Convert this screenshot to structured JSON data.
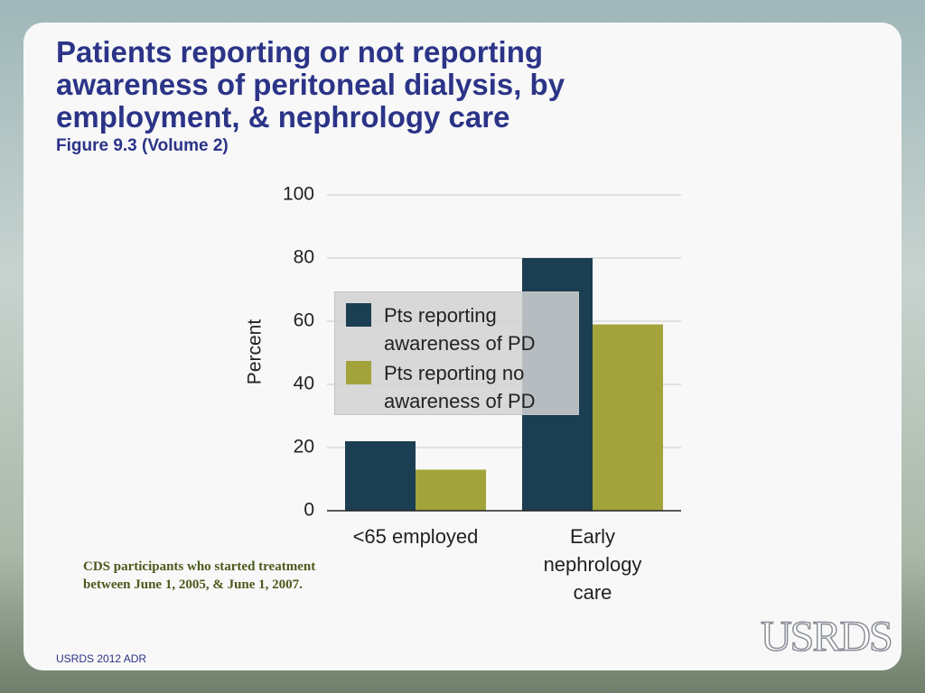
{
  "chart_data": {
    "type": "bar",
    "title": "Patients reporting or not reporting awareness of peritoneal dialysis, by employment, & nephrology  care",
    "subtitle": "Figure 9.3 (Volume 2)",
    "ylabel": "Percent",
    "categories": [
      "<65 employed",
      "Early nephrology care"
    ],
    "series": [
      {
        "name": "Pts reporting awareness of PD",
        "color": "#1b3e52",
        "values": [
          22,
          80
        ]
      },
      {
        "name": "Pts reporting no awareness of PD",
        "color": "#a2a33a",
        "values": [
          13,
          59
        ]
      }
    ],
    "ylim": [
      0,
      100
    ],
    "yticks": [
      0,
      20,
      40,
      60,
      80,
      100
    ],
    "grid": true,
    "note": "CDS participants who started treatment between June 1, 2005, & June 1, 2007.",
    "footer": "USRDS 2012 ADR",
    "logo": "USRDS"
  }
}
